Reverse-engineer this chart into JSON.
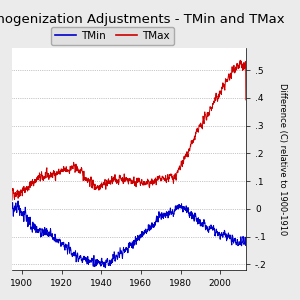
{
  "title": "Homogenization Adjustments - TMin and TMax",
  "ylabel": "Difference (C) relative to 1900-1910",
  "ylim": [
    -0.22,
    0.58
  ],
  "yticks": [
    -0.2,
    -0.1,
    0,
    0.1,
    0.2,
    0.3,
    0.4,
    0.5
  ],
  "ytick_labels": [
    "-.2",
    "-.1",
    "0",
    ".1",
    ".2",
    ".3",
    ".4",
    ".5"
  ],
  "xlim": [
    1895,
    2013
  ],
  "xticks": [
    1900,
    1920,
    1940,
    1960,
    1980,
    2000
  ],
  "tmin_color": "#0000cc",
  "tmax_color": "#cc0000",
  "background_color": "#ebebeb",
  "plot_bg_color": "#ffffff",
  "title_fontsize": 9.5,
  "legend_fontsize": 7.5,
  "axis_fontsize": 6.5,
  "ylabel_fontsize": 6.0
}
